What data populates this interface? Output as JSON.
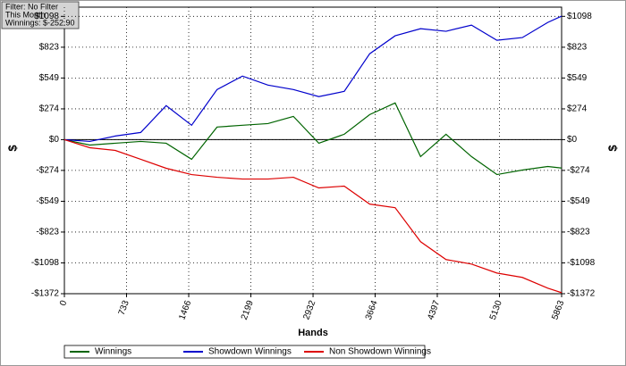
{
  "chart_data": {
    "type": "line",
    "filter_box": [
      "Filter: No Filter",
      "This Month",
      "Winnings: $-252.90"
    ],
    "xlabel": "Hands",
    "ylabel": "$",
    "y2label": "$",
    "x": [
      0,
      300,
      600,
      900,
      1200,
      1500,
      1800,
      2100,
      2400,
      2700,
      3000,
      3300,
      3600,
      3900,
      4200,
      4500,
      4800,
      5100,
      5400,
      5700,
      5863
    ],
    "series": [
      {
        "name": "Winnings",
        "color": "#006400",
        "values": [
          0,
          -48,
          -32,
          -16,
          -32,
          -175,
          112,
          128,
          143,
          207,
          -32,
          48,
          223,
          327,
          -151,
          48,
          -151,
          -311,
          -271,
          -239,
          -253
        ]
      },
      {
        "name": "Showdown Winnings",
        "color": "#0000cc",
        "values": [
          0,
          -16,
          32,
          64,
          303,
          128,
          446,
          566,
          486,
          446,
          383,
          430,
          765,
          925,
          988,
          965,
          1020,
          885,
          909,
          1044,
          1100
        ]
      },
      {
        "name": "Non Showdown Winnings",
        "color": "#dd0000",
        "values": [
          0,
          -72,
          -96,
          -175,
          -255,
          -311,
          -335,
          -351,
          -351,
          -335,
          -430,
          -414,
          -574,
          -606,
          -909,
          -1068,
          -1108,
          -1188,
          -1227,
          -1323,
          -1363
        ]
      }
    ],
    "xlim": [
      0,
      5863
    ],
    "xticks": [
      0,
      733,
      1466,
      2199,
      2932,
      3664,
      4397,
      5130,
      5863
    ],
    "ylim": [
      -1372,
      1180
    ],
    "yticks": [
      {
        "value": 1098,
        "label": "$1098"
      },
      {
        "value": 823,
        "label": "$823"
      },
      {
        "value": 549,
        "label": "$549"
      },
      {
        "value": 274,
        "label": "$274"
      },
      {
        "value": 0,
        "label": "$0"
      },
      {
        "value": -274,
        "label": "-$274"
      },
      {
        "value": -549,
        "label": "-$549"
      },
      {
        "value": -823,
        "label": "-$823"
      },
      {
        "value": -1098,
        "label": "-$1098"
      },
      {
        "value": -1372,
        "label": "-$1372"
      }
    ],
    "grid": true
  }
}
